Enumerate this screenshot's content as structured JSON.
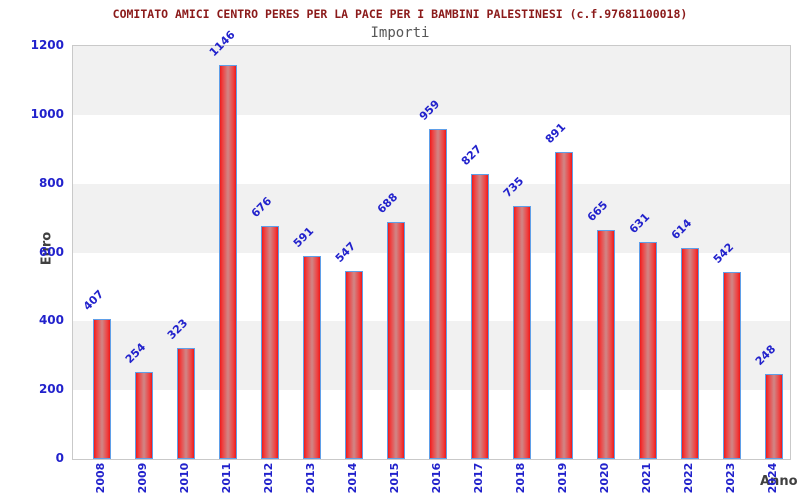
{
  "header": {
    "title": "COMITATO AMICI CENTRO PERES PER LA PACE PER I BAMBINI PALESTINESI (c.f.97681100018)",
    "subtitle": "Importi"
  },
  "axes": {
    "y_label": "Euro",
    "x_label": "Anno"
  },
  "colors": {
    "title_text": "#8b1a1a",
    "subtitle_text": "#575757",
    "tick_label": "#2222cc",
    "value_label": "#2222cc",
    "axis_title": "#404040",
    "band_gray": "#f1f1f1",
    "plot_border": "#c9c9c9",
    "bar_border": "#5f9fe8",
    "bar_edge_red": "#ee1b1b",
    "bar_center_red": "#d08787"
  },
  "chart_data": {
    "type": "bar",
    "title": "COMITATO AMICI CENTRO PERES PER LA PACE PER I BAMBINI PALESTINESI (c.f.97681100018)",
    "subtitle": "Importi",
    "xlabel": "Anno",
    "ylabel": "Euro",
    "categories": [
      "2008",
      "2009",
      "2010",
      "2011",
      "2012",
      "2013",
      "2014",
      "2015",
      "2016",
      "2017",
      "2018",
      "2019",
      "2020",
      "2021",
      "2022",
      "2023",
      "2024"
    ],
    "values": [
      407,
      254,
      323,
      1146,
      676,
      591,
      547,
      688,
      959,
      827,
      735,
      891,
      665,
      631,
      614,
      542,
      248
    ],
    "ylim": [
      0,
      1200
    ],
    "yticks": [
      0,
      200,
      400,
      600,
      800,
      1000,
      1200
    ],
    "grid": "alternating-horizontal-bands",
    "legend": "none",
    "bar_value_labels": "rotated-45",
    "x_tick_labels": "rotated-90"
  }
}
